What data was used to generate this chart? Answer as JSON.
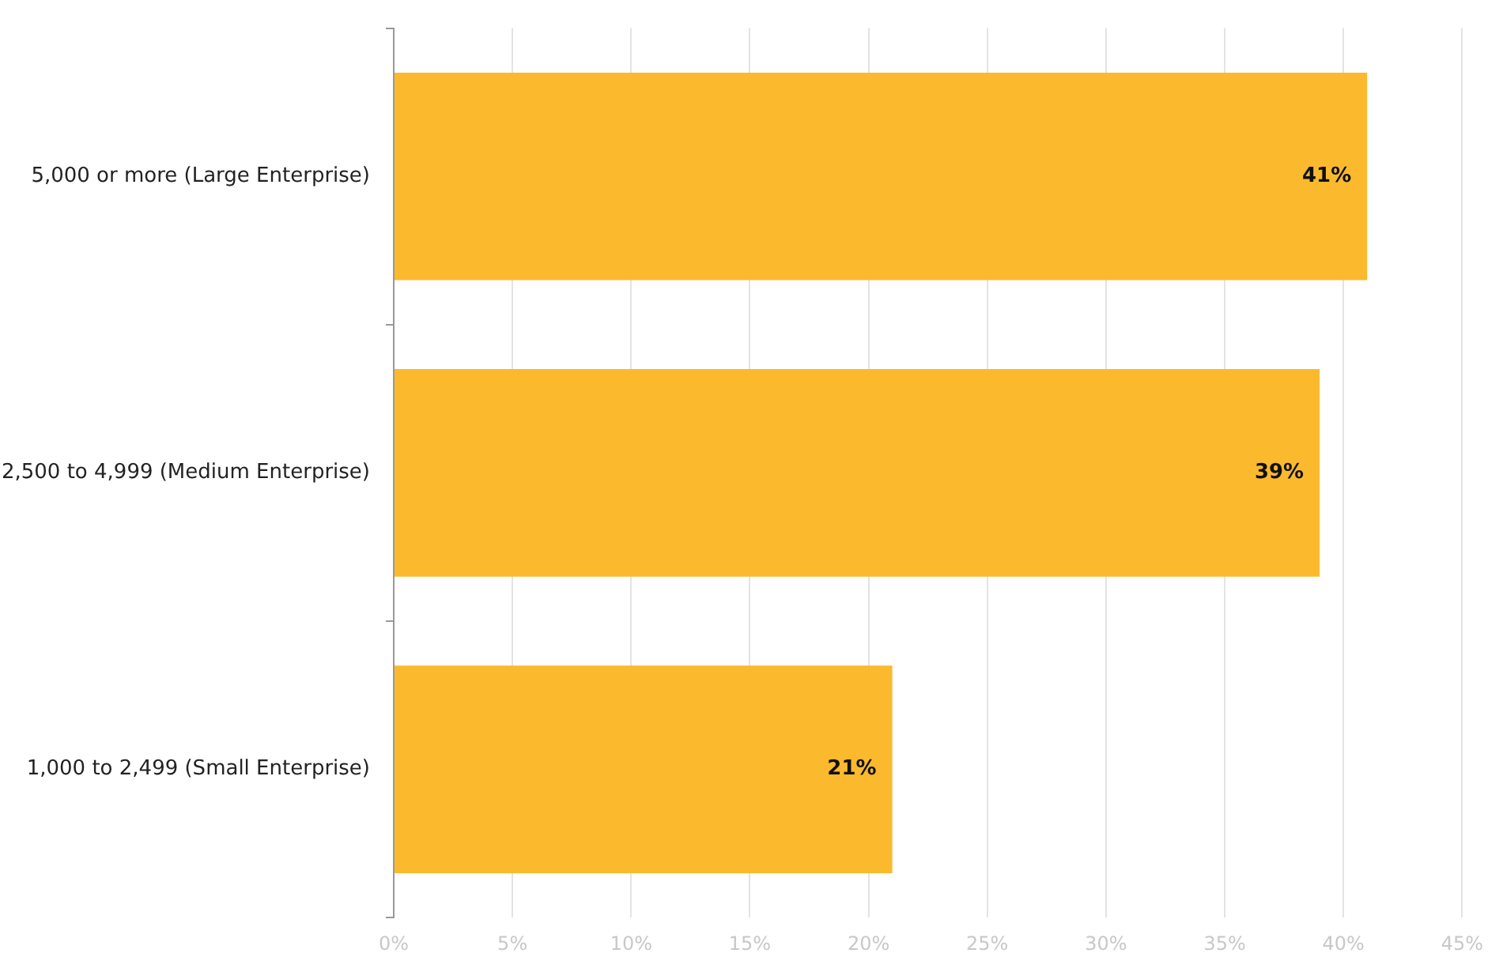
{
  "chart_data": {
    "type": "bar",
    "orientation": "horizontal",
    "categories": [
      "5,000 or more (Large Enterprise)",
      "2,500 to 4,999 (Medium Enterprise)",
      "1,000 to 2,499 (Small Enterprise)"
    ],
    "values": [
      41,
      39,
      21
    ],
    "value_labels": [
      "41%",
      "39%",
      "21%"
    ],
    "color": "#fbb92e",
    "xlim": [
      0,
      45
    ],
    "xticks": [
      {
        "value": 0,
        "label": "0%"
      },
      {
        "value": 5,
        "label": "5%"
      },
      {
        "value": 10,
        "label": "10%"
      },
      {
        "value": 15,
        "label": "15%"
      },
      {
        "value": 20,
        "label": "20%"
      },
      {
        "value": 25,
        "label": "25%"
      },
      {
        "value": 30,
        "label": "30%"
      },
      {
        "value": 35,
        "label": "35%"
      },
      {
        "value": 40,
        "label": "40%"
      },
      {
        "value": 45,
        "label": "45%"
      }
    ],
    "grid": "x",
    "legend": false
  }
}
